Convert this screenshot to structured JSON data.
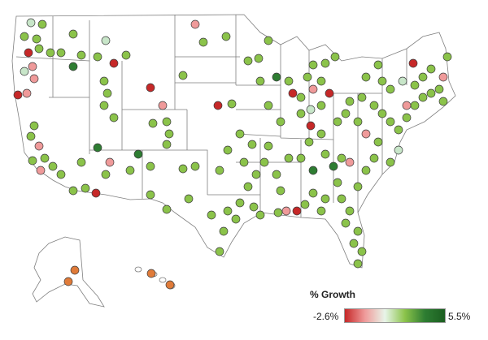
{
  "legend": {
    "title": "% Growth",
    "min_label": "-2.6%",
    "max_label": "5.5%",
    "min_value": -2.6,
    "max_value": 5.5,
    "colors": [
      "#c62828",
      "#ef9a9a",
      "#e8f5e9",
      "#8bc34a",
      "#2e7d32",
      "#1b5e20"
    ]
  },
  "colors": {
    "high_growth": "#2e7d32",
    "moderate_growth": "#8bc34a",
    "low_growth": "#c8e6c9",
    "slight_decline": "#ef9a9a",
    "decline": "#c62828",
    "orange_decline": "#e07b39"
  },
  "regions": [
    "contiguous-us",
    "alaska",
    "hawaii"
  ]
}
